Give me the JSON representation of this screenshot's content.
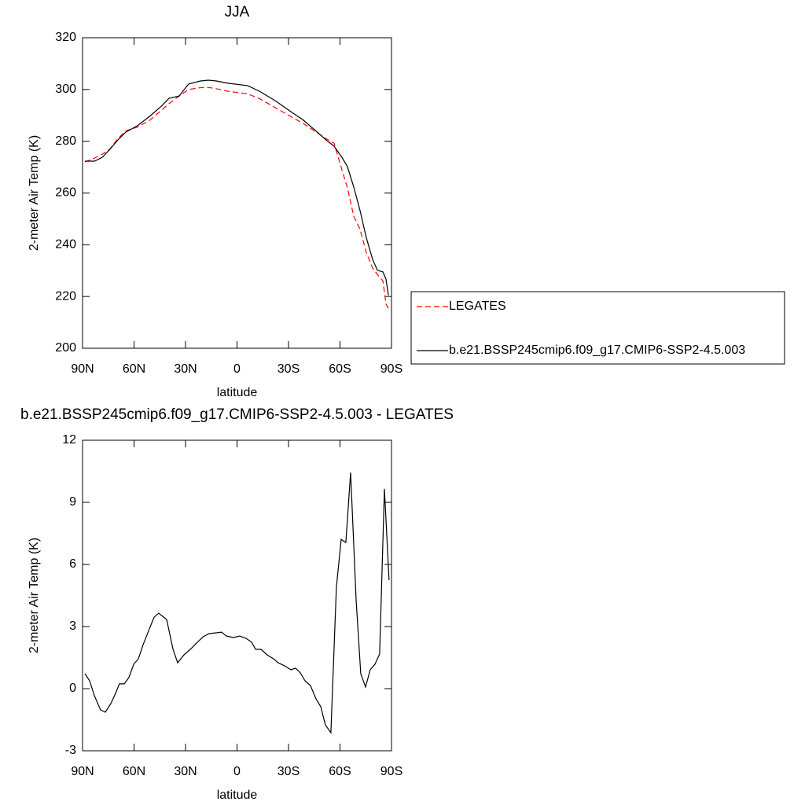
{
  "chart_data": [
    {
      "type": "line",
      "title": "JJA",
      "xlabel": "latitude",
      "ylabel": "2-meter Air Temp (K)",
      "xlim": [
        90,
        -90
      ],
      "xticks": [
        {
          "value": 90,
          "label": "90N"
        },
        {
          "value": 60,
          "label": "60N"
        },
        {
          "value": 30,
          "label": "30N"
        },
        0,
        {
          "value": -30,
          "label": "30S"
        },
        {
          "value": -60,
          "label": "60S"
        },
        {
          "value": -90,
          "label": "90S"
        }
      ],
      "ylim": [
        200,
        320
      ],
      "yticks": [
        200,
        220,
        240,
        260,
        280,
        300,
        320
      ],
      "legend": "right",
      "x": [
        88.6,
        83,
        78.5,
        74,
        69.4,
        64.8,
        58,
        51,
        44,
        39.6,
        33.7,
        28.2,
        21.3,
        16.7,
        12.1,
        5.3,
        -6.2,
        -13.1,
        -22.2,
        -31.4,
        -38.2,
        -45.1,
        -51.9,
        -56.5,
        -61.1,
        -64.3,
        -68,
        -71.7,
        -75.3,
        -79,
        -81.8,
        -85,
        -86.8,
        -88.2
      ],
      "series": [
        {
          "name": "LEGATES",
          "color": "#ff0000",
          "linestyle": "dashed",
          "values": [
            272.0,
            273.5,
            275,
            277,
            281,
            284,
            285.5,
            288,
            292,
            294.5,
            297.5,
            300,
            300.7,
            300.8,
            300.3,
            299.3,
            298.3,
            296.5,
            293,
            289.5,
            287,
            284,
            281,
            279.3,
            269,
            262,
            251,
            246,
            237,
            231,
            228.5,
            226,
            217,
            215.5
          ]
        },
        {
          "name": "b.e21.BSSP245cmip6.f09_g17.CMIP6-SSP2-4.5.003",
          "color": "#000000",
          "linestyle": "solid",
          "values": [
            272.3,
            272.3,
            273.8,
            276.9,
            280.5,
            283.5,
            286,
            289.6,
            293.6,
            296.6,
            297.5,
            302.1,
            303.3,
            303.6,
            303.3,
            302.4,
            301.5,
            299.3,
            295.7,
            291.4,
            288.4,
            284.5,
            280.5,
            278.1,
            273.8,
            270.2,
            262.3,
            253.2,
            242.8,
            234.3,
            230.1,
            229.5,
            226.7,
            220.4
          ]
        }
      ]
    },
    {
      "type": "line",
      "title": "b.e21.BSSP245cmip6.f09_g17.CMIP6-SSP2-4.5.003 - LEGATES",
      "xlabel": "latitude",
      "ylabel": "2-meter Air Temp (K)",
      "xlim": [
        90,
        -90
      ],
      "xticks": [
        {
          "value": 90,
          "label": "90N"
        },
        {
          "value": 60,
          "label": "60N"
        },
        {
          "value": 30,
          "label": "30N"
        },
        0,
        {
          "value": -30,
          "label": "30S"
        },
        {
          "value": -60,
          "label": "60S"
        },
        {
          "value": -90,
          "label": "90S"
        }
      ],
      "ylim": [
        -3,
        12
      ],
      "yticks": [
        -3,
        0,
        3,
        6,
        9,
        12
      ],
      "color": "#000000",
      "x": [
        88.6,
        85.9,
        83.1,
        79.5,
        76.7,
        73.5,
        70.8,
        68.5,
        65.7,
        63,
        60.2,
        57.5,
        54.7,
        51.1,
        48.3,
        45.6,
        41,
        37.3,
        34.6,
        30.9,
        27.2,
        23.6,
        19.9,
        16.3,
        11.7,
        9,
        6.2,
        2.1,
        -1.6,
        -5.3,
        -8.5,
        -10.8,
        -14,
        -17.6,
        -21.3,
        -24,
        -27.7,
        -31.4,
        -34.1,
        -36.9,
        -39.6,
        -42.8,
        -46,
        -48.8,
        -51.5,
        -54.7,
        -57.9,
        -60.7,
        -63.4,
        -66.2,
        -69.4,
        -72.1,
        -74.9,
        -77.6,
        -80.4,
        -83.1,
        -85.9,
        -88.6
      ],
      "values": [
        0.72,
        0.38,
        -0.34,
        -1.03,
        -1.14,
        -0.72,
        -0.23,
        0.23,
        0.23,
        0.53,
        1.18,
        1.44,
        2.13,
        2.88,
        3.45,
        3.64,
        3.34,
        1.9,
        1.25,
        1.63,
        1.9,
        2.2,
        2.5,
        2.66,
        2.7,
        2.73,
        2.54,
        2.47,
        2.54,
        2.43,
        2.24,
        1.9,
        1.9,
        1.63,
        1.44,
        1.25,
        1.1,
        0.91,
        0.99,
        0.76,
        0.38,
        0.15,
        -0.49,
        -0.87,
        -1.75,
        -2.13,
        4.9,
        7.21,
        7.06,
        10.44,
        4.29,
        0.72,
        0.08,
        0.91,
        1.18,
        1.67,
        9.65,
        5.24
      ]
    }
  ]
}
